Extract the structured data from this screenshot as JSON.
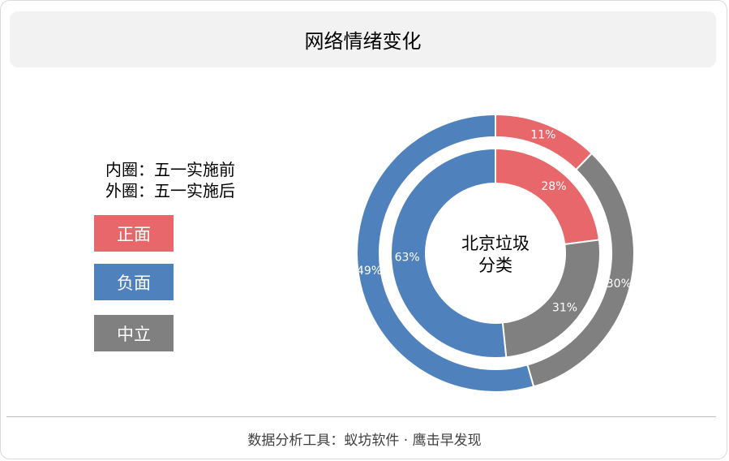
{
  "title": "网络情绪变化",
  "legend_note": {
    "inner": "内圈：五一实施前",
    "outer": "外圈：五一实施后"
  },
  "legend": [
    {
      "label": "正面",
      "color": "#e8676a"
    },
    {
      "label": "负面",
      "color": "#4f81bd"
    },
    {
      "label": "中立",
      "color": "#808080"
    }
  ],
  "center_label": [
    "北京垃圾",
    "分类"
  ],
  "footer": "数据分析工具：蚁坊软件 · 鹰击早发现",
  "chart_data": {
    "type": "pie",
    "variant": "double-donut",
    "categories": [
      "正面",
      "中立",
      "负面"
    ],
    "colors": [
      "#e8676a",
      "#808080",
      "#4f81bd"
    ],
    "series": [
      {
        "name": "外圈：五一实施后",
        "ring": "outer",
        "values": [
          11,
          30,
          49
        ],
        "labels": [
          "11%",
          "30%",
          "49%"
        ]
      },
      {
        "name": "内圈：五一实施前",
        "ring": "inner",
        "values": [
          28,
          31,
          63
        ],
        "labels": [
          "28%",
          "31%",
          "63%"
        ]
      }
    ]
  }
}
